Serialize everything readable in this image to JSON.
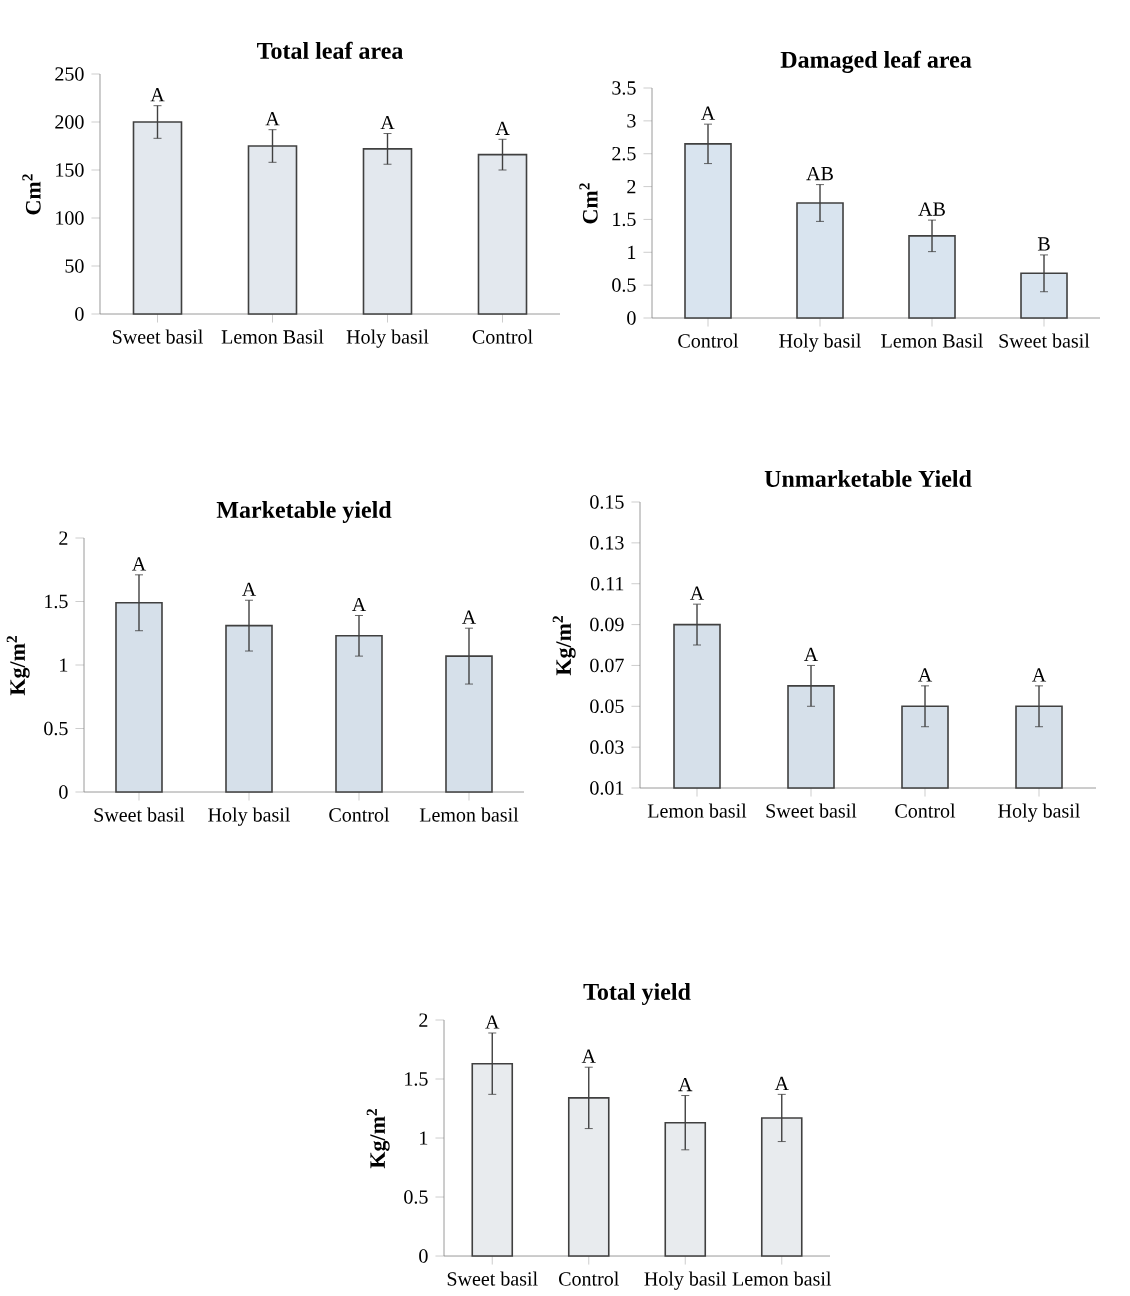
{
  "chart_data": [
    {
      "type": "bar",
      "title": "Total leaf area",
      "ylabel": "Cm$^{2}$",
      "categories": [
        "Sweet basil",
        "Lemon Basil",
        "Holy basil",
        "Control"
      ],
      "values": [
        200,
        175,
        172,
        166
      ],
      "errors": [
        17,
        17,
        16,
        16
      ],
      "color": "#e3e8ee",
      "ylim": [
        0,
        250
      ],
      "yticks": [
        0,
        50,
        100,
        150,
        200,
        250
      ],
      "annotations": [
        {
          "text": "A",
          "x": "Sweet basil",
          "y": 217
        },
        {
          "text": "A",
          "x": "Lemon Basil",
          "y": 192
        },
        {
          "text": "A",
          "x": "Holy basil",
          "y": 188
        },
        {
          "text": "A",
          "x": "Control",
          "y": 182
        }
      ]
    },
    {
      "type": "bar",
      "title": "Damaged leaf area",
      "ylabel": "Cm$^{2}$",
      "categories": [
        "Control",
        "Holy basil",
        "Lemon Basil",
        "Sweet basil"
      ],
      "values": [
        2.65,
        1.75,
        1.25,
        0.68
      ],
      "errors": [
        0.3,
        0.28,
        0.24,
        0.28
      ],
      "color": "#d9e4ef",
      "ylim": [
        0,
        3.5
      ],
      "yticks": [
        0,
        0.5,
        1,
        1.5,
        2,
        2.5,
        3,
        3.5
      ],
      "annotations": [
        {
          "text": "A",
          "x": "Control",
          "y": 2.95
        },
        {
          "text": "AB",
          "x": "Holy basil",
          "y": 2.03
        },
        {
          "text": "AB",
          "x": "Lemon Basil",
          "y": 1.49
        },
        {
          "text": "B",
          "x": "Sweet basil",
          "y": 0.96
        }
      ]
    },
    {
      "type": "bar",
      "title": "Marketable yield",
      "ylabel": "Kg/m$^{2}$",
      "categories": [
        "Sweet basil",
        "Holy basil",
        "Control",
        "Lemon basil"
      ],
      "values": [
        1.49,
        1.31,
        1.23,
        1.07
      ],
      "errors": [
        0.22,
        0.2,
        0.16,
        0.22
      ],
      "color": "#d6e0ea",
      "ylim": [
        0,
        2
      ],
      "yticks": [
        0,
        0.5,
        1,
        1.5,
        2
      ],
      "annotations": [
        {
          "text": "A",
          "x": "Sweet basil",
          "y": 1.71
        },
        {
          "text": "A",
          "x": "Holy basil",
          "y": 1.51
        },
        {
          "text": "A",
          "x": "Control",
          "y": 1.39
        },
        {
          "text": "A",
          "x": "Lemon basil",
          "y": 1.29
        }
      ]
    },
    {
      "type": "bar",
      "title": "Unmarketable  Yield",
      "ylabel": "Kg/m$^{2}$",
      "categories": [
        "Lemon basil",
        "Sweet basil",
        "Control",
        "Holy basil"
      ],
      "values": [
        0.09,
        0.06,
        0.05,
        0.05
      ],
      "errors": [
        0.01,
        0.01,
        0.01,
        0.01
      ],
      "color": "#d6e0ea",
      "ylim": [
        0.01,
        0.15
      ],
      "yticks": [
        0.01,
        0.03,
        0.05,
        0.07,
        0.09,
        0.11,
        0.13,
        0.15
      ],
      "annotations": [
        {
          "text": "A",
          "x": "Lemon basil",
          "y": 0.1
        },
        {
          "text": "A",
          "x": "Sweet basil",
          "y": 0.07
        },
        {
          "text": "A",
          "x": "Control",
          "y": 0.06
        },
        {
          "text": "A",
          "x": "Holy basil",
          "y": 0.06
        }
      ]
    },
    {
      "type": "bar",
      "title": "Total yield",
      "ylabel": "Kg/m$^{2}$",
      "categories": [
        "Sweet basil",
        "Control",
        "Holy basil",
        "Lemon basil"
      ],
      "values": [
        1.63,
        1.34,
        1.13,
        1.17
      ],
      "errors": [
        0.26,
        0.26,
        0.23,
        0.2
      ],
      "color": "#e8ebee",
      "ylim": [
        0,
        2
      ],
      "yticks": [
        0,
        0.5,
        1,
        1.5,
        2
      ],
      "annotations": [
        {
          "text": "A",
          "x": "Sweet basil",
          "y": 1.89
        },
        {
          "text": "A",
          "x": "Control",
          "y": 1.6
        },
        {
          "text": "A",
          "x": "Holy basil",
          "y": 1.36
        },
        {
          "text": "A",
          "x": "Lemon basil",
          "y": 1.37
        }
      ]
    }
  ]
}
